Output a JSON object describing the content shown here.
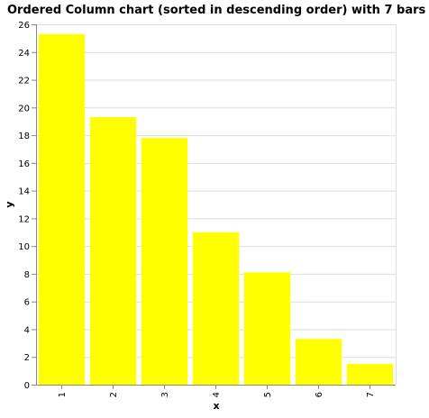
{
  "chart_data": {
    "type": "bar",
    "title": "Ordered Column chart (sorted in descending order) with 7 bars",
    "xlabel": "x",
    "ylabel": "y",
    "categories": [
      "1",
      "2",
      "3",
      "4",
      "5",
      "6",
      "7"
    ],
    "values": [
      25.3,
      19.3,
      17.8,
      11.0,
      8.1,
      3.3,
      1.5
    ],
    "ylim": [
      0,
      26
    ],
    "yticks": [
      0,
      2,
      4,
      6,
      8,
      10,
      12,
      14,
      16,
      18,
      20,
      22,
      24,
      26
    ],
    "grid": true,
    "legend": "none",
    "colors": {
      "bar": "#ffff00",
      "grid": "#dddddd",
      "axis": "#888888"
    }
  }
}
